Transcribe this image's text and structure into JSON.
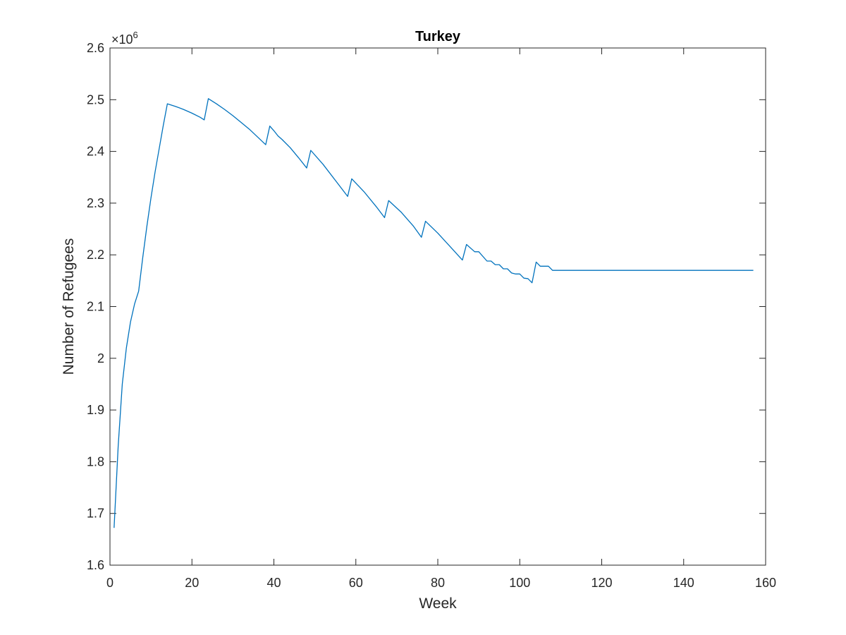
{
  "chart_data": {
    "type": "line",
    "title": "Turkey",
    "xlabel": "Week",
    "ylabel": "Number of Refugees",
    "y_exponent_label": "×10",
    "y_exponent_power": "6",
    "xlim": [
      0,
      160
    ],
    "ylim": [
      1.6,
      2.6
    ],
    "y_scale_note_multiplier": 1000000,
    "x_ticks": [
      0,
      20,
      40,
      60,
      80,
      100,
      120,
      140,
      160
    ],
    "x_tick_labels": [
      "0",
      "20",
      "40",
      "60",
      "80",
      "100",
      "120",
      "140",
      "160"
    ],
    "y_ticks": [
      1.6,
      1.7,
      1.8,
      1.9,
      2.0,
      2.1,
      2.2,
      2.3,
      2.4,
      2.5,
      2.6
    ],
    "y_tick_labels": [
      "1.6",
      "1.7",
      "1.8",
      "1.9",
      "2",
      "2.1",
      "2.2",
      "2.3",
      "2.4",
      "2.5",
      "2.6"
    ],
    "grid": false,
    "series": [
      {
        "color": "#0072BD",
        "points": [
          [
            1,
            1.672
          ],
          [
            2,
            1.83
          ],
          [
            3,
            1.95
          ],
          [
            4,
            2.02
          ],
          [
            5,
            2.07
          ],
          [
            6,
            2.105
          ],
          [
            7,
            2.13
          ],
          [
            8,
            2.195
          ],
          [
            9,
            2.255
          ],
          [
            10,
            2.31
          ],
          [
            11,
            2.36
          ],
          [
            12,
            2.405
          ],
          [
            13,
            2.45
          ],
          [
            14,
            2.492
          ],
          [
            16,
            2.487
          ],
          [
            18,
            2.481
          ],
          [
            20,
            2.474
          ],
          [
            22,
            2.466
          ],
          [
            23,
            2.461
          ],
          [
            24,
            2.502
          ],
          [
            26,
            2.492
          ],
          [
            28,
            2.481
          ],
          [
            30,
            2.469
          ],
          [
            32,
            2.456
          ],
          [
            34,
            2.443
          ],
          [
            36,
            2.428
          ],
          [
            38,
            2.413
          ],
          [
            39,
            2.449
          ],
          [
            40,
            2.44
          ],
          [
            41,
            2.43
          ],
          [
            42,
            2.423
          ],
          [
            44,
            2.407
          ],
          [
            46,
            2.388
          ],
          [
            48,
            2.368
          ],
          [
            49,
            2.402
          ],
          [
            52,
            2.375
          ],
          [
            55,
            2.344
          ],
          [
            58,
            2.313
          ],
          [
            59,
            2.347
          ],
          [
            62,
            2.322
          ],
          [
            65,
            2.293
          ],
          [
            67,
            2.272
          ],
          [
            68,
            2.305
          ],
          [
            71,
            2.283
          ],
          [
            74,
            2.256
          ],
          [
            76,
            2.234
          ],
          [
            77,
            2.265
          ],
          [
            80,
            2.242
          ],
          [
            83,
            2.216
          ],
          [
            86,
            2.19
          ],
          [
            87,
            2.22
          ],
          [
            89,
            2.206
          ],
          [
            90,
            2.206
          ],
          [
            92,
            2.188
          ],
          [
            93,
            2.188
          ],
          [
            94,
            2.181
          ],
          [
            95,
            2.181
          ],
          [
            96,
            2.173
          ],
          [
            97,
            2.173
          ],
          [
            98,
            2.165
          ],
          [
            99,
            2.163
          ],
          [
            100,
            2.163
          ],
          [
            101,
            2.155
          ],
          [
            102,
            2.154
          ],
          [
            103,
            2.146
          ],
          [
            104,
            2.186
          ],
          [
            105,
            2.178
          ],
          [
            107,
            2.178
          ],
          [
            108,
            2.17
          ],
          [
            157,
            2.17
          ]
        ]
      }
    ]
  }
}
